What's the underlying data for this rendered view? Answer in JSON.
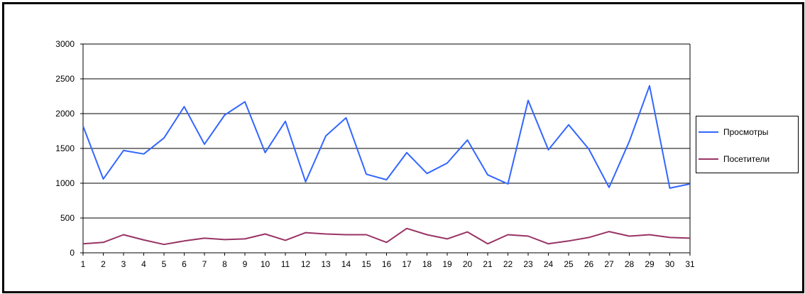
{
  "chart_data": {
    "type": "line",
    "title": "",
    "xlabel": "",
    "ylabel": "",
    "categories": [
      "1",
      "2",
      "3",
      "4",
      "5",
      "6",
      "7",
      "8",
      "9",
      "10",
      "11",
      "12",
      "13",
      "14",
      "15",
      "16",
      "17",
      "18",
      "19",
      "20",
      "21",
      "22",
      "23",
      "24",
      "25",
      "26",
      "27",
      "28",
      "29",
      "30",
      "31"
    ],
    "ylim": [
      0,
      3000
    ],
    "yticks": [
      "0",
      "500",
      "1000",
      "1500",
      "2000",
      "2500",
      "3000"
    ],
    "grid": true,
    "legend_position": "right",
    "series": [
      {
        "name": "Просмотры",
        "color": "#3366ff",
        "values": [
          1820,
          1060,
          1470,
          1420,
          1650,
          2100,
          1560,
          1980,
          2170,
          1440,
          1890,
          1020,
          1680,
          1940,
          1130,
          1050,
          1440,
          1140,
          1290,
          1620,
          1120,
          990,
          2190,
          1480,
          1840,
          1490,
          940,
          1600,
          2400,
          930,
          990
        ]
      },
      {
        "name": "Посетители",
        "color": "#993366",
        "values": [
          130,
          150,
          260,
          185,
          120,
          170,
          210,
          190,
          200,
          270,
          180,
          290,
          270,
          260,
          260,
          150,
          350,
          260,
          200,
          300,
          130,
          260,
          240,
          130,
          170,
          220,
          305,
          240,
          260,
          220,
          210
        ]
      }
    ]
  }
}
